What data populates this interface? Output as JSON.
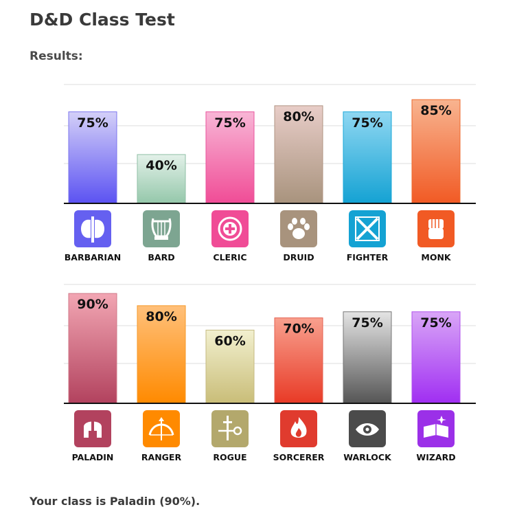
{
  "header": {
    "title": "D&D Class Test",
    "results_label": "Results:"
  },
  "result_text": "Your class is Paladin (90%).",
  "chart_data": [
    {
      "type": "bar",
      "ylim": [
        0,
        100
      ],
      "grid": true,
      "categories": [
        "BARBARIAN",
        "BARD",
        "CLERIC",
        "DRUID",
        "FIGHTER",
        "MONK"
      ],
      "values": [
        75,
        40,
        75,
        80,
        75,
        85
      ],
      "labels": [
        "75%",
        "40%",
        "75%",
        "80%",
        "75%",
        "85%"
      ],
      "icons": [
        "axe-icon",
        "lyre-icon",
        "holy-symbol-icon",
        "paw-icon",
        "crossed-swords-icon",
        "fist-icon"
      ],
      "colors": [
        [
          "#d4d0f8",
          "#5b52f2",
          "#7b74ee",
          "#6560f0"
        ],
        [
          "#e3f1e9",
          "#94c7aa",
          "#8fbfa5",
          "#7da591"
        ],
        [
          "#f8b6d6",
          "#f04c96",
          "#e8549c",
          "#f04c96"
        ],
        [
          "#e8cdc8",
          "#a8937d",
          "#b09483",
          "#a8937d"
        ],
        [
          "#8fd7f2",
          "#14a2d3",
          "#1aa8d8",
          "#14a2d3"
        ],
        [
          "#f8b490",
          "#f15a24",
          "#ee6a2e",
          "#f15a24"
        ]
      ]
    },
    {
      "type": "bar",
      "ylim": [
        0,
        100
      ],
      "grid": true,
      "categories": [
        "PALADIN",
        "RANGER",
        "ROGUE",
        "SORCERER",
        "WARLOCK",
        "WIZARD"
      ],
      "values": [
        90,
        80,
        60,
        70,
        75,
        75
      ],
      "labels": [
        "90%",
        "80%",
        "60%",
        "70%",
        "75%",
        "75%"
      ],
      "icons": [
        "helmet-icon",
        "bow-icon",
        "dagger-key-icon",
        "flame-icon",
        "eye-icon",
        "spellbook-icon"
      ],
      "colors": [
        [
          "#f2a6b3",
          "#b2425e",
          "#d07888",
          "#b2425e"
        ],
        [
          "#ffc07a",
          "#ff8a00",
          "#f59a2a",
          "#ff8a00"
        ],
        [
          "#f2f0cf",
          "#c9bd78",
          "#c4ba82",
          "#b3a86c"
        ],
        [
          "#f8a08e",
          "#e83a26",
          "#e46050",
          "#e03b2e"
        ],
        [
          "#e4e4e4",
          "#555555",
          "#777777",
          "#4b4b4b"
        ],
        [
          "#d9a6f7",
          "#a02ef2",
          "#b052ee",
          "#9b30e8"
        ]
      ]
    }
  ]
}
